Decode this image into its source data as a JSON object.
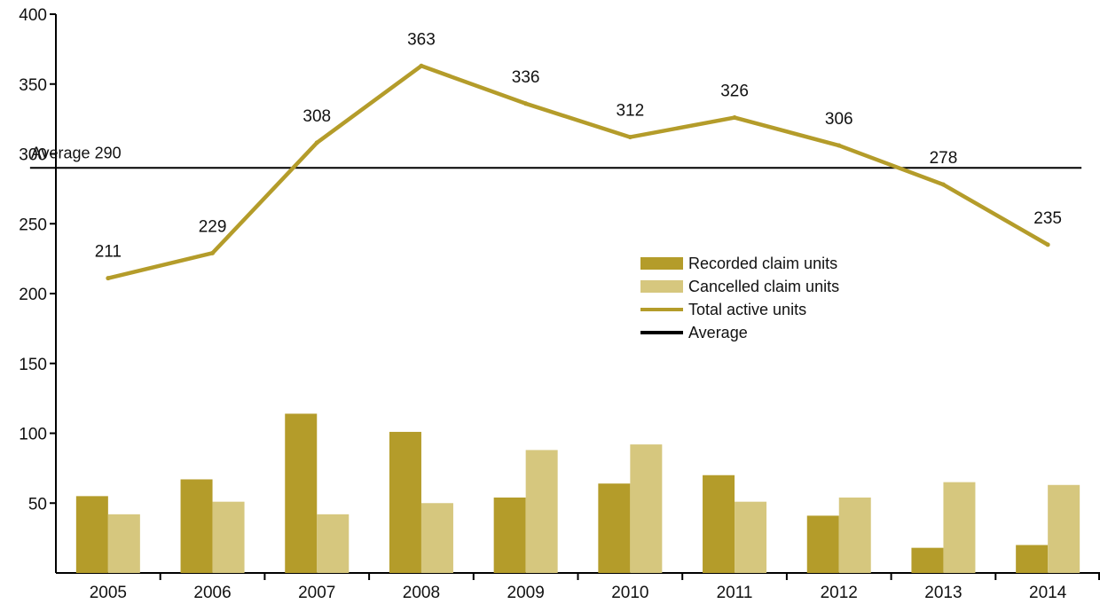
{
  "chart_data": {
    "type": "bar",
    "categories": [
      "2005",
      "2006",
      "2007",
      "2008",
      "2009",
      "2010",
      "2011",
      "2012",
      "2013",
      "2014"
    ],
    "series": [
      {
        "name": "Recorded claim units",
        "type": "bar",
        "color": "#b49c2a",
        "values": [
          55,
          67,
          114,
          101,
          54,
          64,
          70,
          41,
          18,
          20
        ]
      },
      {
        "name": "Cancelled claim units",
        "type": "bar",
        "color": "#d6c77e",
        "values": [
          42,
          51,
          42,
          50,
          88,
          92,
          51,
          54,
          65,
          63
        ]
      },
      {
        "name": "Total active units",
        "type": "line",
        "color": "#b49c2a",
        "values": [
          211,
          229,
          308,
          363,
          336,
          312,
          326,
          306,
          278,
          235
        ],
        "labels": [
          "211",
          "229",
          "308",
          "363",
          "336",
          "312",
          "326",
          "306",
          "278",
          "235"
        ]
      },
      {
        "name": "Average",
        "type": "hline",
        "color": "#000000",
        "value": 290
      }
    ],
    "annotation": "Average 290",
    "ylim": [
      0,
      400
    ],
    "yticks": [
      "50",
      "100",
      "150",
      "200",
      "250",
      "300",
      "350",
      "400"
    ],
    "legend_position": "right-center",
    "grid": false
  }
}
